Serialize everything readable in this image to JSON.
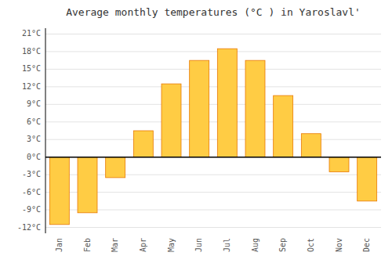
{
  "chart_data": {
    "type": "bar",
    "title": "Average monthly temperatures (°C ) in Yaroslavl'",
    "categories": [
      "Jan",
      "Feb",
      "Mar",
      "Apr",
      "May",
      "Jun",
      "Jul",
      "Aug",
      "Sep",
      "Oct",
      "Nov",
      "Dec"
    ],
    "values": [
      -11.5,
      -9.5,
      -3.5,
      4.5,
      12.5,
      16.5,
      18.5,
      16.5,
      10.5,
      4.0,
      -2.5,
      -7.5
    ],
    "color": "#FFCC44",
    "ylim": [
      -13,
      22
    ],
    "yticks": [
      {
        "value": -12,
        "label": "-12°C"
      },
      {
        "value": -9,
        "label": "-9°C"
      },
      {
        "value": -6,
        "label": "-6°C"
      },
      {
        "value": -3,
        "label": "-3°C"
      },
      {
        "value": 0,
        "label": "0°C"
      },
      {
        "value": 3,
        "label": "3°C"
      },
      {
        "value": 6,
        "label": "6°C"
      },
      {
        "value": 9,
        "label": "9°C"
      },
      {
        "value": 12,
        "label": "12°C"
      },
      {
        "value": 15,
        "label": "15°C"
      },
      {
        "value": 18,
        "label": "18°C"
      },
      {
        "value": 21,
        "label": "21°C"
      }
    ],
    "grid": true
  }
}
